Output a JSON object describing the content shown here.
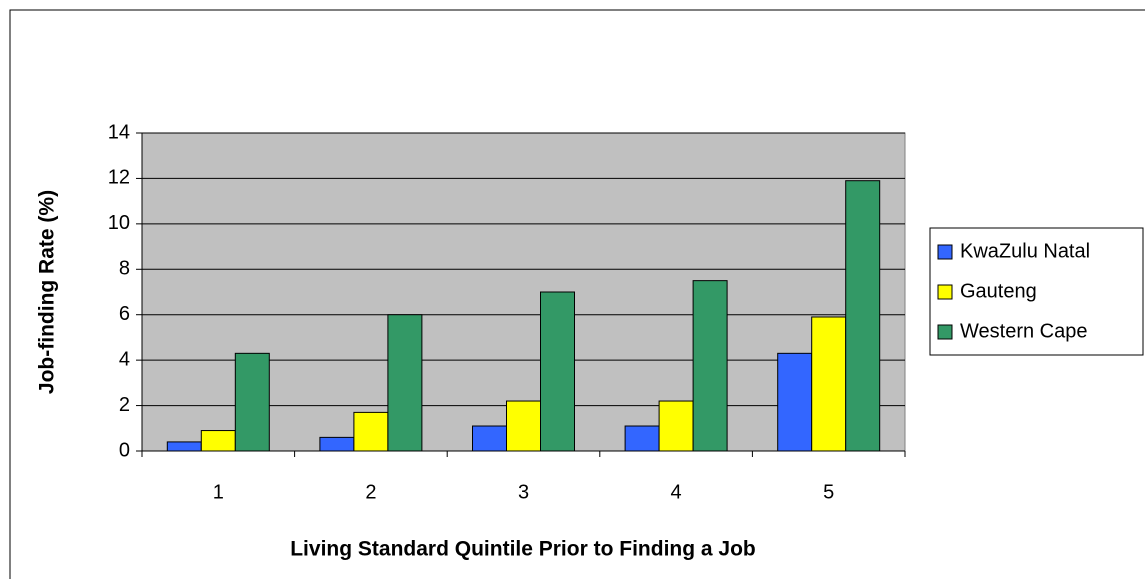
{
  "chart_data": {
    "type": "bar",
    "categories": [
      "1",
      "2",
      "3",
      "4",
      "5"
    ],
    "series": [
      {
        "name": "KwaZulu Natal",
        "color": "#3366ff",
        "values": [
          0.4,
          0.6,
          1.1,
          1.1,
          4.3
        ]
      },
      {
        "name": "Gauteng",
        "color": "#ffff00",
        "values": [
          0.9,
          1.7,
          2.2,
          2.2,
          5.9
        ]
      },
      {
        "name": "Western Cape",
        "color": "#339966",
        "values": [
          4.3,
          6.0,
          7.0,
          7.5,
          11.9
        ]
      }
    ],
    "x_label": "Living Standard Quintile Prior to Finding a Job",
    "y_label": "Job-finding Rate (%)",
    "ylim": [
      0,
      14
    ],
    "yticks": [
      0,
      2,
      4,
      6,
      8,
      10,
      12,
      14
    ],
    "grid": true,
    "legend_position": "right"
  }
}
